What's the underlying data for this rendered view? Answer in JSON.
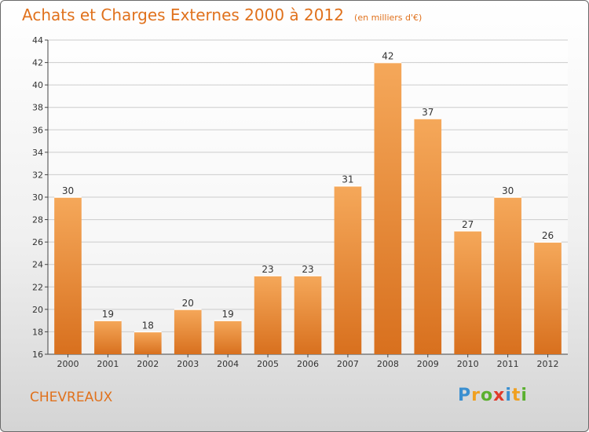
{
  "title": "Achats et Charges Externes 2000 à 2012",
  "subtitle": "(en milliers d'€)",
  "place": "CHEVREAUX",
  "logo": {
    "text": "Proxiti",
    "letters": [
      {
        "char": "P",
        "color": "#3a8fd0"
      },
      {
        "char": "r",
        "color": "#f0a020"
      },
      {
        "char": "o",
        "color": "#5bb030"
      },
      {
        "char": "x",
        "color": "#e03a2a"
      },
      {
        "char": "i",
        "color": "#3a8fd0"
      },
      {
        "char": "t",
        "color": "#f0a020"
      },
      {
        "char": "i",
        "color": "#5bb030"
      }
    ]
  },
  "colors": {
    "accent": "#e0711c",
    "bar_top": "#f5a85a",
    "bar_bottom": "#d8701e",
    "grid": "#cccccc",
    "axis": "#444444"
  },
  "chart_data": {
    "type": "bar",
    "categories": [
      "2000",
      "2001",
      "2002",
      "2003",
      "2004",
      "2005",
      "2006",
      "2007",
      "2008",
      "2009",
      "2010",
      "2011",
      "2012"
    ],
    "values": [
      30,
      19,
      18,
      20,
      19,
      23,
      23,
      31,
      42,
      37,
      27,
      30,
      26
    ],
    "title": "Achats et Charges Externes 2000 à 2012",
    "subtitle": "(en milliers d'€)",
    "xlabel": "",
    "ylabel": "",
    "ylim": [
      16,
      44
    ],
    "yticks": [
      16,
      18,
      20,
      22,
      24,
      26,
      28,
      30,
      32,
      34,
      36,
      38,
      40,
      42,
      44
    ],
    "grid": true,
    "data_labels": true
  }
}
